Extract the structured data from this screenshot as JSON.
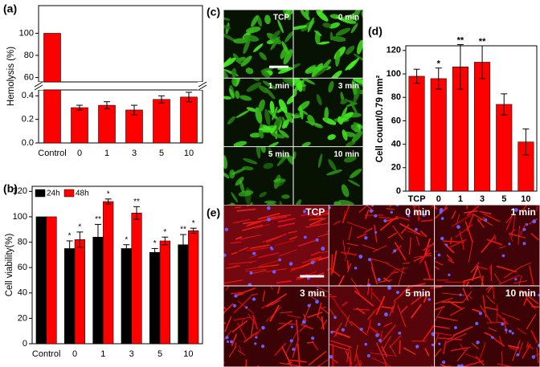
{
  "panel_labels": [
    "(a)",
    "(b)",
    "(c)",
    "(d)",
    "(e)"
  ],
  "chart_data": [
    {
      "type": "broken-bar",
      "ylabel": "Hemolysis (%)",
      "categories": [
        "Control",
        "0",
        "1",
        "3",
        "5",
        "10"
      ],
      "values": [
        100,
        0.3,
        0.32,
        0.28,
        0.37,
        0.39
      ],
      "errors": [
        0,
        0.02,
        0.03,
        0.04,
        0.03,
        0.04
      ],
      "color": "#ff0000",
      "segments": [
        {
          "ylim": [
            0,
            0.45
          ],
          "yticks": [
            {
              "value": 0,
              "label": "0.0"
            },
            {
              "value": 0.2,
              "label": "0.2"
            },
            {
              "value": 0.4,
              "label": "0.4"
            }
          ]
        },
        {
          "ylim": [
            56,
            125
          ],
          "yticks": [
            60,
            80,
            100
          ]
        }
      ]
    },
    {
      "type": "grouped-bar",
      "ylabel": "Cell viability(%)",
      "categories": [
        "Control",
        "0",
        "1",
        "3",
        "5",
        "10"
      ],
      "series": [
        {
          "name": "24h",
          "color": "#000000",
          "values": [
            100,
            75,
            84,
            75,
            72,
            78
          ],
          "errors": [
            0,
            6,
            10,
            3,
            3,
            8
          ],
          "stars": [
            null,
            "*",
            "**",
            "*",
            "*",
            "**"
          ]
        },
        {
          "name": "48h",
          "color": "#ff0000",
          "values": [
            100,
            82,
            112,
            103,
            81,
            89
          ],
          "errors": [
            0,
            6,
            2,
            5,
            3,
            2
          ],
          "stars": [
            null,
            "*",
            "*",
            "**",
            "*",
            "*"
          ]
        }
      ],
      "ylim": [
        0,
        124
      ],
      "yticks": [
        0,
        20,
        40,
        60,
        80,
        100,
        120
      ],
      "legend": "upper left"
    },
    {
      "type": "bar",
      "ylabel": "Cell count/0.79 mm²",
      "categories": [
        "TCP",
        "0",
        "1",
        "3",
        "5",
        "10"
      ],
      "values": [
        98,
        96,
        106,
        110,
        74,
        42
      ],
      "errors": [
        6,
        9,
        19,
        14,
        9,
        11
      ],
      "stars": [
        null,
        "*",
        "**",
        "**",
        null,
        null
      ],
      "color": "#ff0000",
      "ylim": [
        0,
        124
      ],
      "yticks": [
        0,
        20,
        40,
        60,
        80,
        100,
        120
      ]
    }
  ],
  "micrographs": [
    {
      "labels": [
        "TCP",
        "0 min",
        "1 min",
        "3 min",
        "5 min",
        "10 min"
      ]
    },
    {
      "labels": [
        "TCP",
        "0 min",
        "1 min",
        "3 min",
        "5 min",
        "10 min"
      ]
    }
  ]
}
